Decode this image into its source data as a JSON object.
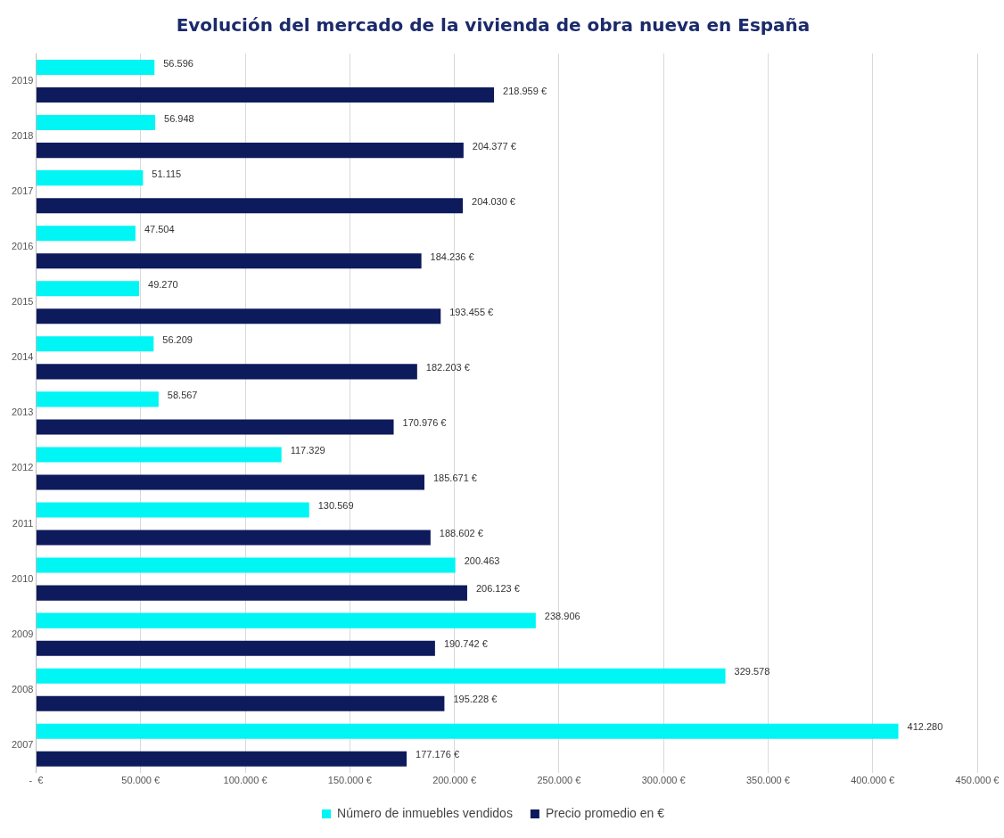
{
  "chart_data": {
    "type": "bar",
    "orientation": "horizontal",
    "title": "Evolución del mercado de la vivienda de obra nueva en España",
    "categories": [
      "2019",
      "2018",
      "2017",
      "2016",
      "2015",
      "2014",
      "2013",
      "2012",
      "2011",
      "2010",
      "2009",
      "2008",
      "2007"
    ],
    "series": [
      {
        "name": "Número de inmuebles vendidos",
        "color": "#00f5f5",
        "values": [
          56596,
          56948,
          51115,
          47504,
          49270,
          56209,
          58567,
          117329,
          130569,
          200463,
          238906,
          329578,
          412280
        ],
        "value_labels": [
          "56.596",
          "56.948",
          "51.115",
          "47.504",
          "49.270",
          "56.209",
          "58.567",
          "117.329",
          "130.569",
          "200.463",
          "238.906",
          "329.578",
          "412.280"
        ]
      },
      {
        "name": "Precio promedio en €",
        "color": "#0d1a5c",
        "values": [
          218959,
          204377,
          204030,
          184236,
          193455,
          182203,
          170976,
          185671,
          188602,
          206123,
          190742,
          195228,
          177176
        ],
        "value_labels": [
          "218.959 €",
          "204.377 €",
          "204.030 €",
          "184.236 €",
          "193.455 €",
          "182.203 €",
          "170.976 €",
          "185.671 €",
          "188.602 €",
          "206.123 €",
          "190.742 €",
          "195.228 €",
          "177.176 €"
        ]
      }
    ],
    "xlim": [
      0,
      450000
    ],
    "xticks": [
      {
        "value": 0,
        "label": "-  €"
      },
      {
        "value": 50000,
        "label": "50.000 €"
      },
      {
        "value": 100000,
        "label": "100.000 €"
      },
      {
        "value": 150000,
        "label": "150.000 €"
      },
      {
        "value": 200000,
        "label": "200.000 €"
      },
      {
        "value": 250000,
        "label": "250.000 €"
      },
      {
        "value": 300000,
        "label": "300.000 €"
      },
      {
        "value": 350000,
        "label": "350.000 €"
      },
      {
        "value": 400000,
        "label": "400.000 €"
      },
      {
        "value": 450000,
        "label": "450.000 €"
      }
    ],
    "grid": "x",
    "legend": "bottom"
  }
}
